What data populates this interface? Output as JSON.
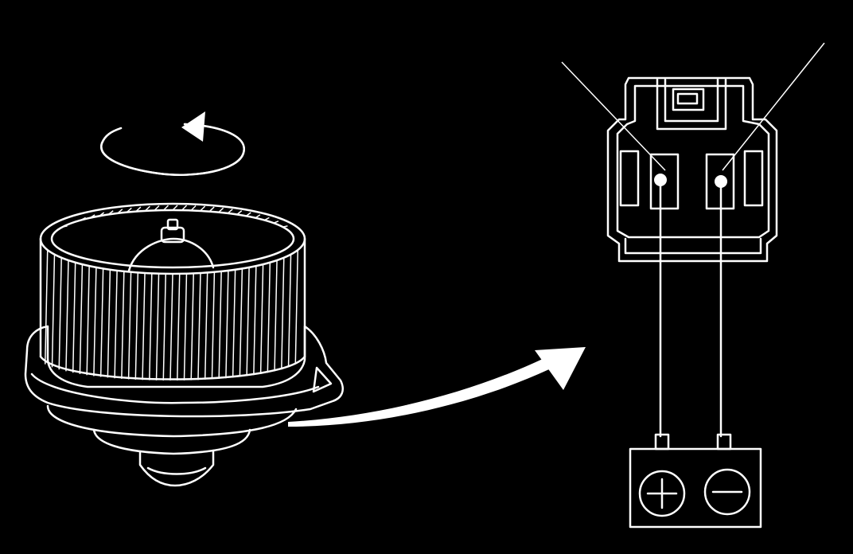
{
  "colors": {
    "background": "#000000",
    "linework": "#ffffff"
  },
  "icons": {
    "rotation": "rotation-arrow-icon",
    "flow": "curved-arrow-icon",
    "battery_positive": "plus-icon",
    "battery_negative": "minus-icon"
  }
}
